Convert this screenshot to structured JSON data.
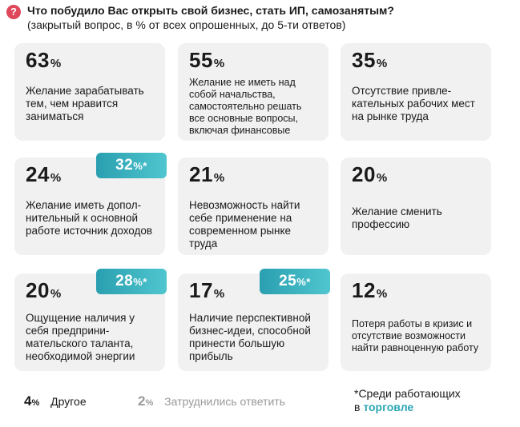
{
  "header": {
    "icon": "question-icon",
    "title": "Что побудило Вас открыть свой бизнес, стать ИП, самозанятым?",
    "subtitle": "(закрытый вопрос, в % от всех опрошенных, до 5-ти ответов)"
  },
  "colors": {
    "accent": "#3db8c4",
    "icon": "#e0475a",
    "card_bg": "#f1f1f1"
  },
  "chart_data": {
    "type": "table",
    "title": "Что побудило Вас открыть свой бизнес, стать ИП, самозанятым?",
    "subtitle": "(закрытый вопрос, в % от всех опрошенных, до 5-ти ответов)",
    "unit": "%",
    "items": [
      {
        "value": "63",
        "unit": "%",
        "label": "Желание зарабатывать тем, чем нравится заниматься"
      },
      {
        "value": "55",
        "unit": "%",
        "label": "Желание не иметь над собой начальства, самостоятельно решать все основные вопросы, включая финансовые"
      },
      {
        "value": "35",
        "unit": "%",
        "label": "Отсутствие привле-кательных рабочих мест на рынке труда"
      },
      {
        "value": "24",
        "unit": "%",
        "label": "Желание иметь допол-нительный к основной работе источник доходов",
        "trade_value": "32",
        "trade_unit": "%*"
      },
      {
        "value": "21",
        "unit": "%",
        "label": "Невозможность найти себе применение на современном рынке труда"
      },
      {
        "value": "20",
        "unit": "%",
        "label": "Желание сменить профессию"
      },
      {
        "value": "20",
        "unit": "%",
        "label": "Ощущение наличия у себя предприни-мательского таланта, необходимой энергии",
        "trade_value": "28",
        "trade_unit": "%*"
      },
      {
        "value": "17",
        "unit": "%",
        "label": "Наличие перспективной бизнес-идеи, способной принести большую прибыль",
        "trade_value": "25",
        "trade_unit": "%*"
      },
      {
        "value": "12",
        "unit": "%",
        "label": "Потеря работы в кризис и отсутствие возможности найти равноценную работу"
      }
    ],
    "other": [
      {
        "value": "4",
        "unit": "%",
        "label": "Другое"
      },
      {
        "value": "2",
        "unit": "%",
        "label": "Затруднились ответить"
      }
    ],
    "note": {
      "prefix": "*Среди работающих",
      "line2": "в",
      "highlight": "торговле"
    }
  }
}
